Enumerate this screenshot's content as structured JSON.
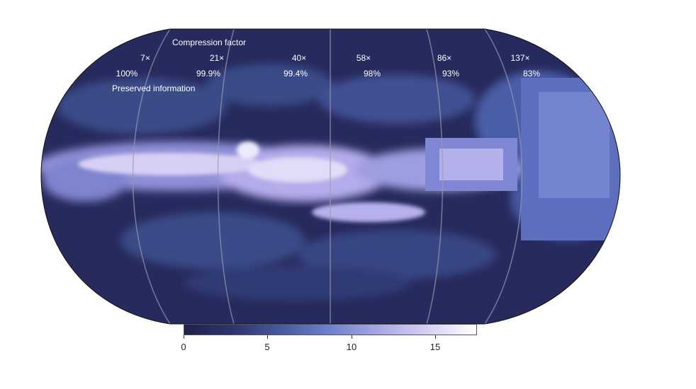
{
  "header": {
    "compression_title": "Compression factor",
    "preserved_title": "Preserved information"
  },
  "panels": [
    {
      "factor": "7×",
      "preserved": "100%"
    },
    {
      "factor": "21×",
      "preserved": "99.9%"
    },
    {
      "factor": "40×",
      "preserved": "99.4%"
    },
    {
      "factor": "58×",
      "preserved": "98%"
    },
    {
      "factor": "86×",
      "preserved": "93%"
    },
    {
      "factor": "137×",
      "preserved": "83%"
    }
  ],
  "colorbar": {
    "min": 0,
    "max": 17.5,
    "ticks": [
      {
        "value": 0,
        "label": "0"
      },
      {
        "value": 5,
        "label": "5"
      },
      {
        "value": 10,
        "label": "10"
      },
      {
        "value": 15,
        "label": "15"
      }
    ],
    "colors": [
      "#20214a",
      "#2f3570",
      "#485c9f",
      "#6f82cc",
      "#a9a7e6",
      "#d8d2f4",
      "#ffffff"
    ]
  },
  "colors": {
    "ocean_dark": "#262a5c",
    "mid": "#3e4f8d",
    "bright": "#c8c0f0",
    "grid": "#9a9ab0"
  }
}
